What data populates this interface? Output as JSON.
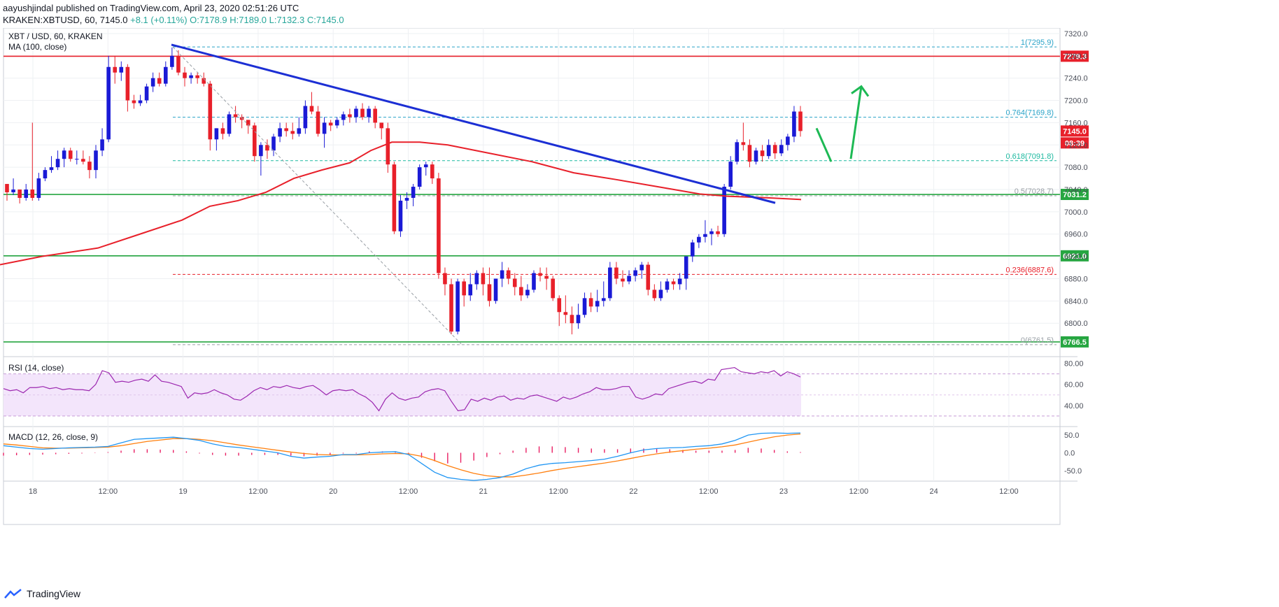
{
  "header": {
    "author": "aayushjindal",
    "published": "published on TradingView.com, April 23, 2020 02:51:26 UTC",
    "symbol": "KRAKEN:XBTUSD, 60",
    "last": "7145.0",
    "change": "+8.1 (+0.11%)",
    "ohlc": "O:7178.9 H:7189.0 L:7132.3 C:7145.0"
  },
  "main_legend": {
    "title": "XBT / USD, 60, KRAKEN",
    "ma": "MA (100, close)"
  },
  "rsi_legend": "RSI (14, close)",
  "macd_legend": "MACD (12, 26, close, 9)",
  "footer": {
    "brand": "TradingView"
  },
  "colors": {
    "up": "#1a1ad6",
    "down": "#e8202a",
    "ma": "#e8202a",
    "trendline": "#1c2fd4",
    "support": "#26a641",
    "resistance": "#e8202a",
    "fib": "#2aa3c8",
    "rsi": "#9c27b0",
    "macd": "#2196f3",
    "signal": "#ff7f0e",
    "hist": "#e91e63",
    "arrow": "#1db954"
  },
  "chart_data": {
    "type": "candlestick",
    "price_axis": {
      "min": 6740,
      "max": 7330,
      "ticks": [
        6800,
        6840,
        6880,
        6920,
        6960,
        7000,
        7040,
        7080,
        7120,
        7160,
        7200,
        7240,
        7280,
        7320
      ]
    },
    "time_axis": {
      "labels": [
        "18",
        "12:00",
        "19",
        "12:00",
        "20",
        "12:00",
        "21",
        "12:00",
        "22",
        "12:00",
        "23",
        "12:00",
        "24",
        "12:00"
      ]
    },
    "candles": [
      [
        7050,
        7050,
        7020,
        7035
      ],
      [
        7035,
        7060,
        7030,
        7040
      ],
      [
        7040,
        7040,
        7015,
        7025
      ],
      [
        7025,
        7050,
        7020,
        7040
      ],
      [
        7040,
        7160,
        7020,
        7025
      ],
      [
        7025,
        7070,
        7020,
        7060
      ],
      [
        7060,
        7080,
        7055,
        7075
      ],
      [
        7075,
        7100,
        7070,
        7080
      ],
      [
        7080,
        7110,
        7075,
        7095
      ],
      [
        7095,
        7115,
        7080,
        7110
      ],
      [
        7110,
        7115,
        7090,
        7095
      ],
      [
        7095,
        7110,
        7085,
        7095
      ],
      [
        7095,
        7110,
        7085,
        7090
      ],
      [
        7090,
        7100,
        7060,
        7075
      ],
      [
        7075,
        7120,
        7060,
        7110
      ],
      [
        7110,
        7150,
        7100,
        7130
      ],
      [
        7130,
        7280,
        7125,
        7260
      ],
      [
        7260,
        7280,
        7230,
        7250
      ],
      [
        7250,
        7270,
        7235,
        7260
      ],
      [
        7260,
        7265,
        7180,
        7200
      ],
      [
        7200,
        7210,
        7185,
        7195
      ],
      [
        7195,
        7210,
        7190,
        7200
      ],
      [
        7200,
        7230,
        7195,
        7225
      ],
      [
        7225,
        7250,
        7215,
        7240
      ],
      [
        7240,
        7250,
        7225,
        7230
      ],
      [
        7230,
        7270,
        7225,
        7260
      ],
      [
        7260,
        7295,
        7255,
        7280
      ],
      [
        7280,
        7290,
        7245,
        7250
      ],
      [
        7250,
        7260,
        7225,
        7240
      ],
      [
        7240,
        7250,
        7230,
        7245
      ],
      [
        7245,
        7250,
        7230,
        7240
      ],
      [
        7240,
        7250,
        7225,
        7230
      ],
      [
        7230,
        7235,
        7110,
        7130
      ],
      [
        7130,
        7150,
        7110,
        7150
      ],
      [
        7150,
        7160,
        7130,
        7140
      ],
      [
        7140,
        7180,
        7135,
        7175
      ],
      [
        7175,
        7190,
        7160,
        7170
      ],
      [
        7170,
        7175,
        7150,
        7165
      ],
      [
        7165,
        7165,
        7140,
        7155
      ],
      [
        7155,
        7160,
        7090,
        7100
      ],
      [
        7100,
        7125,
        7065,
        7120
      ],
      [
        7120,
        7130,
        7095,
        7110
      ],
      [
        7110,
        7140,
        7100,
        7135
      ],
      [
        7135,
        7160,
        7125,
        7150
      ],
      [
        7150,
        7160,
        7135,
        7145
      ],
      [
        7145,
        7160,
        7130,
        7140
      ],
      [
        7140,
        7170,
        7135,
        7150
      ],
      [
        7150,
        7200,
        7140,
        7190
      ],
      [
        7190,
        7215,
        7175,
        7180
      ],
      [
        7180,
        7190,
        7135,
        7140
      ],
      [
        7140,
        7170,
        7115,
        7160
      ],
      [
        7160,
        7165,
        7145,
        7155
      ],
      [
        7155,
        7170,
        7150,
        7165
      ],
      [
        7165,
        7180,
        7155,
        7175
      ],
      [
        7175,
        7185,
        7160,
        7170
      ],
      [
        7170,
        7190,
        7160,
        7185
      ],
      [
        7185,
        7195,
        7165,
        7170
      ],
      [
        7170,
        7190,
        7160,
        7185
      ],
      [
        7185,
        7190,
        7150,
        7160
      ],
      [
        7160,
        7160,
        7130,
        7150
      ],
      [
        7150,
        7160,
        7070,
        7085
      ],
      [
        7085,
        7090,
        6960,
        6965
      ],
      [
        6965,
        7030,
        6955,
        7020
      ],
      [
        7020,
        7035,
        7005,
        7025
      ],
      [
        7025,
        7050,
        7010,
        7045
      ],
      [
        7045,
        7085,
        7040,
        7080
      ],
      [
        7080,
        7090,
        7065,
        7085
      ],
      [
        7085,
        7090,
        7050,
        7060
      ],
      [
        7060,
        7070,
        6880,
        6890
      ],
      [
        6890,
        6900,
        6850,
        6870
      ],
      [
        6870,
        6880,
        6780,
        6785
      ],
      [
        6785,
        6880,
        6780,
        6875
      ],
      [
        6875,
        6880,
        6830,
        6850
      ],
      [
        6850,
        6890,
        6840,
        6870
      ],
      [
        6870,
        6895,
        6860,
        6890
      ],
      [
        6890,
        6900,
        6850,
        6870
      ],
      [
        6870,
        6900,
        6830,
        6840
      ],
      [
        6840,
        6880,
        6835,
        6880
      ],
      [
        6880,
        6910,
        6865,
        6895
      ],
      [
        6895,
        6900,
        6870,
        6880
      ],
      [
        6880,
        6890,
        6850,
        6865
      ],
      [
        6865,
        6885,
        6840,
        6850
      ],
      [
        6850,
        6870,
        6845,
        6860
      ],
      [
        6860,
        6895,
        6855,
        6890
      ],
      [
        6890,
        6900,
        6875,
        6885
      ],
      [
        6885,
        6900,
        6860,
        6880
      ],
      [
        6880,
        6885,
        6840,
        6845
      ],
      [
        6845,
        6850,
        6795,
        6820
      ],
      [
        6820,
        6850,
        6800,
        6815
      ],
      [
        6815,
        6830,
        6780,
        6800
      ],
      [
        6800,
        6835,
        6790,
        6815
      ],
      [
        6815,
        6855,
        6810,
        6845
      ],
      [
        6845,
        6855,
        6820,
        6830
      ],
      [
        6830,
        6860,
        6820,
        6840
      ],
      [
        6840,
        6875,
        6830,
        6845
      ],
      [
        6845,
        6910,
        6840,
        6900
      ],
      [
        6900,
        6910,
        6870,
        6880
      ],
      [
        6880,
        6895,
        6865,
        6875
      ],
      [
        6875,
        6895,
        6870,
        6885
      ],
      [
        6885,
        6900,
        6875,
        6895
      ],
      [
        6895,
        6910,
        6880,
        6905
      ],
      [
        6905,
        6910,
        6850,
        6860
      ],
      [
        6860,
        6870,
        6840,
        6845
      ],
      [
        6845,
        6875,
        6840,
        6860
      ],
      [
        6860,
        6880,
        6855,
        6875
      ],
      [
        6875,
        6880,
        6860,
        6870
      ],
      [
        6870,
        6890,
        6860,
        6880
      ],
      [
        6880,
        6920,
        6860,
        6920
      ],
      [
        6920,
        6950,
        6910,
        6945
      ],
      [
        6945,
        6960,
        6935,
        6955
      ],
      [
        6955,
        6985,
        6945,
        6960
      ],
      [
        6960,
        6970,
        6940,
        6965
      ],
      [
        6965,
        6975,
        6955,
        6960
      ],
      [
        6960,
        7050,
        6955,
        7045
      ],
      [
        7045,
        7100,
        7040,
        7090
      ],
      [
        7090,
        7130,
        7085,
        7125
      ],
      [
        7125,
        7160,
        7110,
        7120
      ],
      [
        7120,
        7130,
        7080,
        7090
      ],
      [
        7090,
        7115,
        7085,
        7110
      ],
      [
        7110,
        7120,
        7090,
        7100
      ],
      [
        7100,
        7130,
        7095,
        7120
      ],
      [
        7120,
        7125,
        7095,
        7105
      ],
      [
        7105,
        7130,
        7100,
        7120
      ],
      [
        7120,
        7140,
        7110,
        7135
      ],
      [
        7135,
        7190,
        7125,
        7180
      ],
      [
        7180,
        7190,
        7135,
        7145
      ]
    ],
    "ma100": [
      [
        0,
        6905
      ],
      [
        60,
        6920
      ],
      [
        140,
        6935
      ],
      [
        200,
        6960
      ],
      [
        260,
        6985
      ],
      [
        300,
        7010
      ],
      [
        340,
        7020
      ],
      [
        380,
        7035
      ],
      [
        420,
        7060
      ],
      [
        460,
        7075
      ],
      [
        500,
        7088
      ],
      [
        530,
        7110
      ],
      [
        560,
        7125
      ],
      [
        600,
        7125
      ],
      [
        640,
        7120
      ],
      [
        700,
        7105
      ],
      [
        760,
        7090
      ],
      [
        820,
        7070
      ],
      [
        880,
        7058
      ],
      [
        940,
        7045
      ],
      [
        1000,
        7032
      ],
      [
        1040,
        7028
      ],
      [
        1100,
        7025
      ],
      [
        1145,
        7022
      ]
    ],
    "trendline": {
      "from": [
        245,
        7300
      ],
      "to": [
        1108,
        7016
      ]
    },
    "horizontal_levels": [
      {
        "price": 7279.3,
        "label": "7279.3",
        "color": "resistance"
      },
      {
        "price": 7031.2,
        "label": "7031.2",
        "color": "support"
      },
      {
        "price": 6921.0,
        "label": "6921.0",
        "color": "support"
      },
      {
        "price": 6766.5,
        "label": "6766.5",
        "color": "support"
      }
    ],
    "last_price_label": "7145.0",
    "countdown_label": "08:39",
    "fibonacci": [
      {
        "price": 7295.9,
        "label": "1(7295.9)"
      },
      {
        "price": 7169.8,
        "label": "0.764(7169.8)"
      },
      {
        "price": 7091.8,
        "label": "0.618(7091.8)"
      },
      {
        "price": 7028.7,
        "label": "0.5(7028.7)"
      },
      {
        "price": 6887.6,
        "label": "0.236(6887.6)"
      },
      {
        "price": 6761.5,
        "label": "0(6761.5)"
      }
    ],
    "rsi": {
      "ticks": [
        "80.00",
        "60.00",
        "40.00"
      ],
      "values": [
        56,
        54,
        55,
        52,
        57,
        57,
        58,
        56,
        57,
        55,
        56,
        55,
        55,
        54,
        60,
        73,
        71,
        62,
        63,
        62,
        64,
        65,
        63,
        69,
        63,
        62,
        60,
        58,
        47,
        52,
        51,
        52,
        55,
        52,
        50,
        46,
        45,
        49,
        54,
        57,
        55,
        58,
        57,
        59,
        57,
        56,
        58,
        59,
        55,
        50,
        54,
        55,
        54,
        55,
        51,
        48,
        43,
        35,
        46,
        52,
        47,
        45,
        47,
        48,
        53,
        55,
        56,
        54,
        44,
        35,
        36,
        46,
        44,
        47,
        45,
        48,
        49,
        45,
        47,
        46,
        49,
        50,
        48,
        46,
        44,
        48,
        46,
        48,
        51,
        53,
        57,
        55,
        55,
        56,
        58,
        58,
        48,
        46,
        48,
        51,
        50,
        56,
        58,
        60,
        62,
        63,
        61,
        65,
        64,
        74,
        75,
        76,
        72,
        71,
        70,
        72,
        71,
        73,
        68,
        72,
        70,
        67
      ]
    },
    "macd": {
      "ticks": [
        "50.0",
        "0.0",
        "-50.0"
      ],
      "macd": [
        20,
        16,
        12,
        10,
        12,
        14,
        15,
        16,
        18,
        28,
        38,
        40,
        42,
        44,
        40,
        35,
        25,
        18,
        15,
        10,
        5,
        0,
        -10,
        -15,
        -12,
        -10,
        -5,
        -5,
        0,
        2,
        3,
        -5,
        -30,
        -55,
        -70,
        -75,
        -78,
        -75,
        -70,
        -60,
        -45,
        -35,
        -30,
        -28,
        -25,
        -22,
        -18,
        -10,
        0,
        8,
        12,
        14,
        15,
        18,
        20,
        25,
        35,
        50,
        55,
        56,
        55,
        56
      ],
      "signal": [
        25,
        22,
        18,
        14,
        13,
        13,
        14,
        15,
        16,
        20,
        26,
        32,
        36,
        40,
        40,
        38,
        34,
        28,
        22,
        17,
        12,
        7,
        2,
        -2,
        -5,
        -6,
        -6,
        -6,
        -5,
        -3,
        -2,
        -3,
        -10,
        -22,
        -36,
        -48,
        -58,
        -65,
        -68,
        -68,
        -63,
        -57,
        -50,
        -44,
        -39,
        -34,
        -29,
        -23,
        -16,
        -9,
        -3,
        2,
        6,
        10,
        13,
        17,
        22,
        30,
        38,
        45,
        50,
        53
      ],
      "hist": [
        -8,
        -7,
        -6,
        -5,
        -4,
        -3,
        -2,
        -1,
        2,
        6,
        10,
        10,
        9,
        8,
        4,
        -2,
        -6,
        -8,
        -8,
        -6,
        -6,
        -6,
        -8,
        -10,
        -8,
        -6,
        -2,
        -2,
        4,
        4,
        4,
        -2,
        -14,
        -24,
        -30,
        -28,
        -22,
        -12,
        -4,
        6,
        14,
        18,
        18,
        16,
        14,
        12,
        10,
        10,
        12,
        12,
        12,
        10,
        8,
        6,
        6,
        6,
        8,
        14,
        12,
        8,
        4,
        2
      ]
    },
    "arrows": [
      {
        "from": [
          1167,
          7150
        ],
        "to": [
          1188,
          7090
        ]
      },
      {
        "from": [
          1216,
          7095
        ],
        "to": [
          1231,
          7225
        ]
      }
    ]
  }
}
